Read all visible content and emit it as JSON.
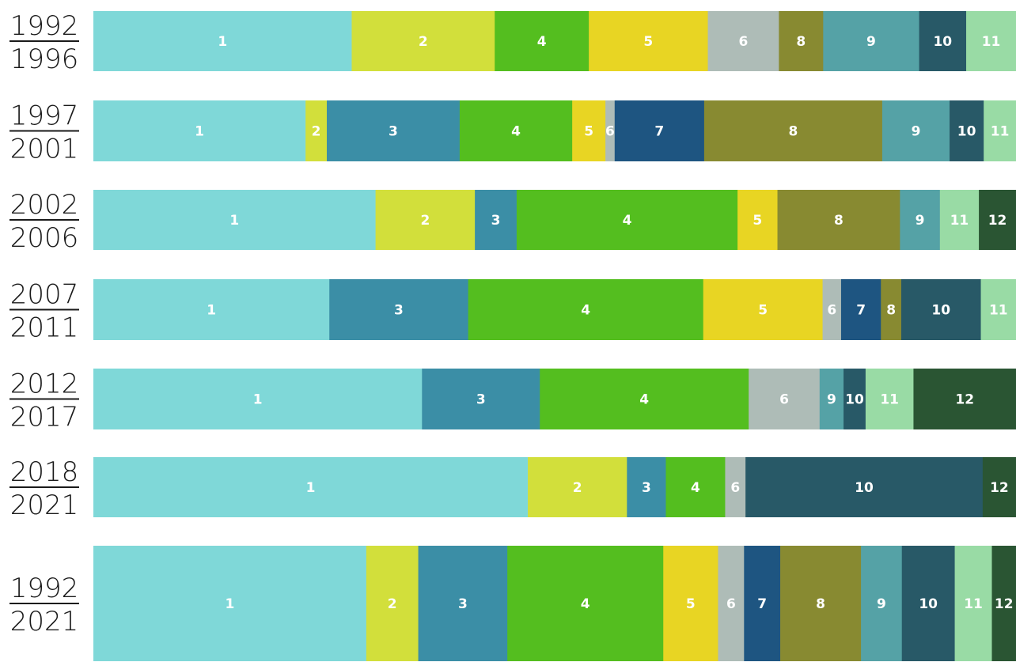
{
  "chart_data": {
    "type": "bar",
    "orientation": "horizontal",
    "stacked": true,
    "normalized": true,
    "title": "",
    "xlabel": "",
    "ylabel": "",
    "legend": "none",
    "grid": false,
    "category_colors": {
      "1": "#7fd8d8",
      "2": "#d2df3b",
      "3": "#3b8ea6",
      "4": "#54be1f",
      "5": "#e8d523",
      "6": "#aebcb7",
      "7": "#1e5581",
      "8": "#888a31",
      "9": "#55a2a6",
      "10": "#285967",
      "11": "#99dba5",
      "12": "#2a5533"
    },
    "bars": [
      {
        "start": "1992",
        "end": "1996",
        "segments": [
          {
            "label": "1",
            "value": 28.0
          },
          {
            "label": "2",
            "value": 15.5
          },
          {
            "label": "4",
            "value": 10.2
          },
          {
            "label": "5",
            "value": 12.9
          },
          {
            "label": "6",
            "value": 7.7
          },
          {
            "label": "8",
            "value": 4.8
          },
          {
            "label": "9",
            "value": 10.4
          },
          {
            "label": "10",
            "value": 5.1
          },
          {
            "label": "11",
            "value": 5.4
          }
        ]
      },
      {
        "start": "1997",
        "end": "2001",
        "segments": [
          {
            "label": "1",
            "value": 23.0
          },
          {
            "label": "2",
            "value": 2.3
          },
          {
            "label": "3",
            "value": 14.4
          },
          {
            "label": "4",
            "value": 12.2
          },
          {
            "label": "5",
            "value": 3.6
          },
          {
            "label": "6",
            "value": 1.0
          },
          {
            "label": "7",
            "value": 9.7
          },
          {
            "label": "8",
            "value": 19.3
          },
          {
            "label": "9",
            "value": 7.3
          },
          {
            "label": "10",
            "value": 3.7
          },
          {
            "label": "11",
            "value": 3.5
          }
        ]
      },
      {
        "start": "2002",
        "end": "2006",
        "segments": [
          {
            "label": "1",
            "value": 30.4
          },
          {
            "label": "2",
            "value": 10.7
          },
          {
            "label": "3",
            "value": 4.5
          },
          {
            "label": "4",
            "value": 23.8
          },
          {
            "label": "5",
            "value": 4.3
          },
          {
            "label": "8",
            "value": 13.2
          },
          {
            "label": "9",
            "value": 4.3
          },
          {
            "label": "11",
            "value": 4.2
          },
          {
            "label": "12",
            "value": 4.0
          }
        ]
      },
      {
        "start": "2007",
        "end": "2011",
        "segments": [
          {
            "label": "1",
            "value": 25.5
          },
          {
            "label": "3",
            "value": 15.0
          },
          {
            "label": "4",
            "value": 25.4
          },
          {
            "label": "5",
            "value": 12.9
          },
          {
            "label": "6",
            "value": 2.0
          },
          {
            "label": "7",
            "value": 4.3
          },
          {
            "label": "8",
            "value": 2.2
          },
          {
            "label": "10",
            "value": 8.6
          },
          {
            "label": "11",
            "value": 3.8
          }
        ]
      },
      {
        "start": "2012",
        "end": "2017",
        "segments": [
          {
            "label": "1",
            "value": 34.3
          },
          {
            "label": "3",
            "value": 12.3
          },
          {
            "label": "4",
            "value": 21.8
          },
          {
            "label": "6",
            "value": 7.4
          },
          {
            "label": "9",
            "value": 2.5
          },
          {
            "label": "10",
            "value": 2.3
          },
          {
            "label": "11",
            "value": 5.0
          },
          {
            "label": "12",
            "value": 10.7
          }
        ]
      },
      {
        "start": "2018",
        "end": "2021",
        "segments": [
          {
            "label": "1",
            "value": 46.9
          },
          {
            "label": "2",
            "value": 10.7
          },
          {
            "label": "3",
            "value": 4.2
          },
          {
            "label": "4",
            "value": 6.4
          },
          {
            "label": "6",
            "value": 2.2
          },
          {
            "label": "10",
            "value": 25.6
          },
          {
            "label": "12",
            "value": 3.6
          }
        ]
      },
      {
        "start": "1992",
        "end": "2021",
        "segments": [
          {
            "label": "1",
            "value": 29.4
          },
          {
            "label": "2",
            "value": 5.6
          },
          {
            "label": "3",
            "value": 9.6
          },
          {
            "label": "4",
            "value": 16.8
          },
          {
            "label": "5",
            "value": 5.9
          },
          {
            "label": "6",
            "value": 2.8
          },
          {
            "label": "7",
            "value": 3.9
          },
          {
            "label": "8",
            "value": 8.7
          },
          {
            "label": "9",
            "value": 4.4
          },
          {
            "label": "10",
            "value": 5.7
          },
          {
            "label": "11",
            "value": 4.0
          },
          {
            "label": "12",
            "value": 2.6
          }
        ]
      }
    ]
  }
}
